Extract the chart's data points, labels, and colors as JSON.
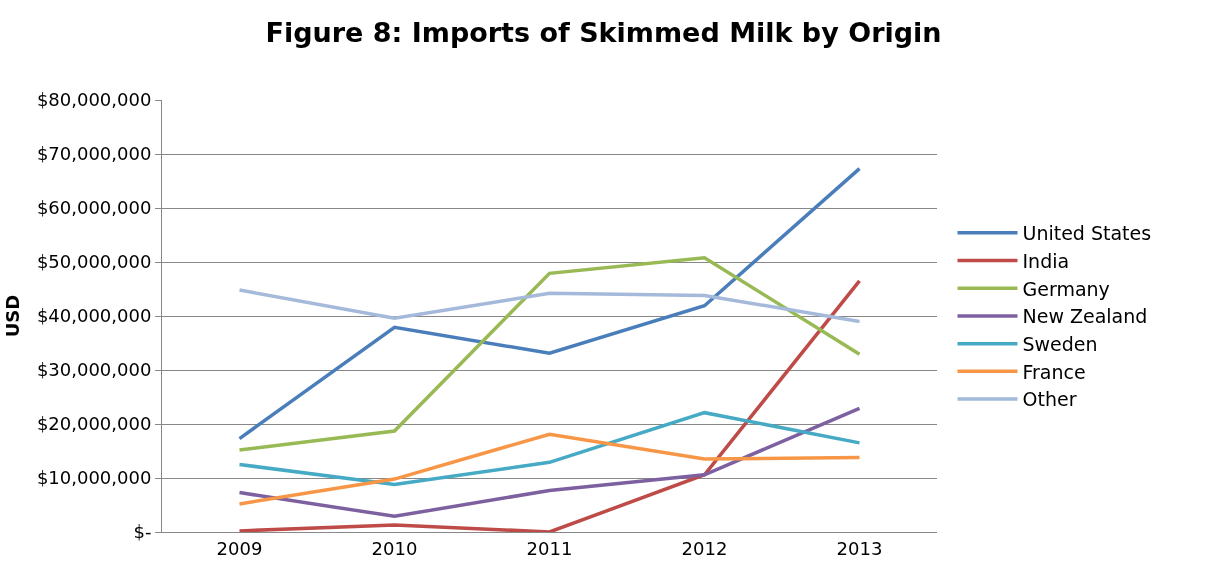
{
  "chart_data": {
    "type": "line",
    "title": "Figure 8: Imports of Skimmed Milk by Origin",
    "ylabel": "USD",
    "categories": [
      "2009",
      "2010",
      "2011",
      "2012",
      "2013"
    ],
    "series": [
      {
        "name": "United States",
        "color": "#4a7ebb",
        "values": [
          17300000,
          37900000,
          33100000,
          41900000,
          67300000
        ]
      },
      {
        "name": "India",
        "color": "#be4b48",
        "values": [
          200000,
          1300000,
          0,
          10600000,
          46500000
        ]
      },
      {
        "name": "Germany",
        "color": "#98b954",
        "values": [
          15200000,
          18700000,
          47900000,
          50800000,
          32900000
        ]
      },
      {
        "name": "New Zealand",
        "color": "#7d60a0",
        "values": [
          7300000,
          2900000,
          7700000,
          10600000,
          22900000
        ]
      },
      {
        "name": "Sweden",
        "color": "#46aac5",
        "values": [
          12500000,
          8800000,
          12900000,
          22100000,
          16500000
        ]
      },
      {
        "name": "France",
        "color": "#f79646",
        "values": [
          5200000,
          9800000,
          18100000,
          13500000,
          13800000
        ]
      },
      {
        "name": "Other",
        "color": "#a5b9da",
        "values": [
          44800000,
          39600000,
          44200000,
          43800000,
          39000000
        ]
      }
    ],
    "ylim": [
      0,
      80000000
    ],
    "yticks": [
      {
        "value": 0,
        "label": "$-"
      },
      {
        "value": 10000000,
        "label": "$10,000,000"
      },
      {
        "value": 20000000,
        "label": "$20,000,000"
      },
      {
        "value": 30000000,
        "label": "$30,000,000"
      },
      {
        "value": 40000000,
        "label": "$40,000,000"
      },
      {
        "value": 50000000,
        "label": "$50,000,000"
      },
      {
        "value": 60000000,
        "label": "$60,000,000"
      },
      {
        "value": 70000000,
        "label": "$70,000,000"
      },
      {
        "value": 80000000,
        "label": "$80,000,000"
      }
    ],
    "grid": "y",
    "legend": "right",
    "marker": "none",
    "line_style": "solid"
  }
}
